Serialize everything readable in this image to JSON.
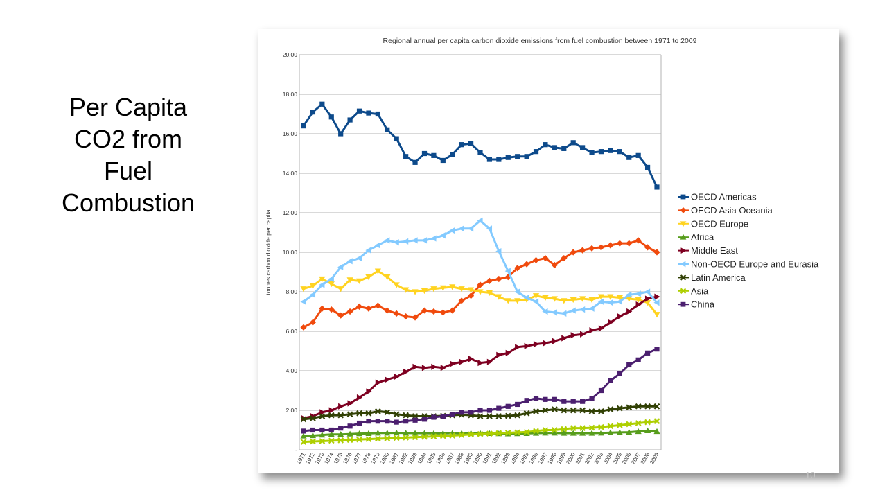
{
  "slide": {
    "title_lines": [
      "Per Capita",
      "CO2 from",
      "Fuel",
      "Combustion"
    ],
    "page_number": "10"
  },
  "chart_data": {
    "type": "line",
    "title": "Regional annual per capita carbon dioxide emissions from fuel combustion between 1971 to 2009",
    "xlabel": "",
    "ylabel": "tonnes carbon dioxide per capita",
    "ylim": [
      0,
      20
    ],
    "yticks": [
      "-",
      "2.00",
      "4.00",
      "6.00",
      "8.00",
      "10.00",
      "12.00",
      "14.00",
      "16.00",
      "18.00",
      "20.00"
    ],
    "grid": true,
    "legend_position": "right",
    "categories": [
      "1971",
      "1972",
      "1973",
      "1974",
      "1975",
      "1976",
      "1977",
      "1978",
      "1979",
      "1980",
      "1981",
      "1982",
      "1983",
      "1984",
      "1985",
      "1986",
      "1987",
      "1988",
      "1989",
      "1990",
      "1991",
      "1992",
      "1993",
      "1994",
      "1995",
      "1996",
      "1997",
      "1998",
      "1999",
      "2000",
      "2001",
      "2002",
      "2003",
      "2004",
      "2005",
      "2006",
      "2007",
      "2008",
      "2009"
    ],
    "series": [
      {
        "name": "OECD Americas",
        "color": "#0d4a8b",
        "marker": "square",
        "values": [
          16.4,
          17.1,
          17.5,
          16.85,
          16.0,
          16.7,
          17.15,
          17.05,
          17.0,
          16.2,
          15.75,
          14.85,
          14.55,
          15.0,
          14.9,
          14.65,
          14.95,
          15.45,
          15.5,
          15.05,
          14.7,
          14.7,
          14.8,
          14.85,
          14.85,
          15.1,
          15.45,
          15.3,
          15.25,
          15.55,
          15.3,
          15.05,
          15.1,
          15.15,
          15.1,
          14.8,
          14.9,
          14.3,
          13.3
        ]
      },
      {
        "name": "OECD Asia Oceania",
        "color": "#f04a0d",
        "marker": "diamond",
        "values": [
          6.2,
          6.45,
          7.15,
          7.1,
          6.8,
          7.0,
          7.25,
          7.15,
          7.3,
          7.05,
          6.9,
          6.75,
          6.7,
          7.05,
          7.0,
          6.95,
          7.05,
          7.55,
          7.8,
          8.35,
          8.55,
          8.65,
          8.75,
          9.2,
          9.4,
          9.6,
          9.7,
          9.35,
          9.7,
          10.0,
          10.1,
          10.2,
          10.25,
          10.35,
          10.45,
          10.45,
          10.6,
          10.25,
          10.0
        ]
      },
      {
        "name": "OECD Europe",
        "color": "#ffd320",
        "marker": "triangle-down",
        "values": [
          8.15,
          8.3,
          8.65,
          8.4,
          8.15,
          8.6,
          8.55,
          8.75,
          9.05,
          8.75,
          8.35,
          8.1,
          8.0,
          8.05,
          8.15,
          8.2,
          8.25,
          8.15,
          8.1,
          8.0,
          7.95,
          7.75,
          7.55,
          7.55,
          7.6,
          7.8,
          7.7,
          7.65,
          7.55,
          7.6,
          7.65,
          7.6,
          7.75,
          7.75,
          7.7,
          7.65,
          7.6,
          7.45,
          6.85
        ]
      },
      {
        "name": "Africa",
        "color": "#579d1c",
        "marker": "triangle-up",
        "values": [
          0.7,
          0.72,
          0.75,
          0.78,
          0.78,
          0.8,
          0.82,
          0.83,
          0.85,
          0.85,
          0.86,
          0.85,
          0.84,
          0.84,
          0.83,
          0.83,
          0.84,
          0.84,
          0.84,
          0.84,
          0.83,
          0.82,
          0.81,
          0.82,
          0.83,
          0.84,
          0.85,
          0.85,
          0.84,
          0.84,
          0.84,
          0.84,
          0.85,
          0.87,
          0.88,
          0.89,
          0.93,
          0.97,
          0.93
        ]
      },
      {
        "name": "Middle East",
        "color": "#7e0021",
        "marker": "triangle-right",
        "values": [
          1.6,
          1.7,
          1.9,
          2.0,
          2.2,
          2.35,
          2.65,
          2.95,
          3.4,
          3.55,
          3.7,
          3.95,
          4.2,
          4.15,
          4.2,
          4.15,
          4.35,
          4.45,
          4.6,
          4.4,
          4.45,
          4.8,
          4.9,
          5.2,
          5.25,
          5.35,
          5.4,
          5.5,
          5.65,
          5.8,
          5.85,
          6.05,
          6.15,
          6.45,
          6.75,
          7.0,
          7.35,
          7.65,
          7.75
        ]
      },
      {
        "name": "Non-OECD Europe and Eurasia",
        "color": "#83caff",
        "marker": "triangle-left",
        "values": [
          7.5,
          7.85,
          8.35,
          8.65,
          9.25,
          9.55,
          9.7,
          10.1,
          10.35,
          10.6,
          10.5,
          10.55,
          10.6,
          10.6,
          10.7,
          10.85,
          11.1,
          11.2,
          11.2,
          11.6,
          11.2,
          10.05,
          9.05,
          8.0,
          7.7,
          7.5,
          7.0,
          6.95,
          6.9,
          7.05,
          7.1,
          7.15,
          7.5,
          7.45,
          7.5,
          7.85,
          7.9,
          8.0,
          7.45
        ]
      },
      {
        "name": "Latin America",
        "color": "#314004",
        "marker": "cross",
        "values": [
          1.55,
          1.6,
          1.7,
          1.75,
          1.75,
          1.8,
          1.85,
          1.85,
          1.95,
          1.9,
          1.8,
          1.75,
          1.7,
          1.7,
          1.7,
          1.72,
          1.75,
          1.78,
          1.75,
          1.7,
          1.7,
          1.7,
          1.72,
          1.75,
          1.85,
          1.95,
          2.0,
          2.05,
          2.0,
          2.0,
          2.0,
          1.95,
          1.95,
          2.05,
          2.1,
          2.15,
          2.2,
          2.2,
          2.2
        ]
      },
      {
        "name": "Asia",
        "color": "#aecf00",
        "marker": "cross",
        "values": [
          0.4,
          0.42,
          0.44,
          0.46,
          0.48,
          0.5,
          0.52,
          0.54,
          0.56,
          0.58,
          0.6,
          0.62,
          0.64,
          0.66,
          0.68,
          0.7,
          0.72,
          0.75,
          0.78,
          0.8,
          0.82,
          0.84,
          0.86,
          0.88,
          0.9,
          0.95,
          1.0,
          1.0,
          1.05,
          1.1,
          1.1,
          1.12,
          1.15,
          1.2,
          1.25,
          1.3,
          1.35,
          1.4,
          1.45
        ]
      },
      {
        "name": "China",
        "color": "#4b1f6f",
        "marker": "square",
        "values": [
          0.95,
          1.0,
          1.0,
          1.0,
          1.1,
          1.2,
          1.35,
          1.45,
          1.45,
          1.45,
          1.4,
          1.45,
          1.5,
          1.55,
          1.65,
          1.7,
          1.8,
          1.9,
          1.9,
          2.0,
          2.0,
          2.1,
          2.2,
          2.3,
          2.5,
          2.6,
          2.55,
          2.55,
          2.45,
          2.45,
          2.45,
          2.6,
          3.0,
          3.5,
          3.85,
          4.3,
          4.55,
          4.9,
          5.1
        ]
      }
    ]
  }
}
